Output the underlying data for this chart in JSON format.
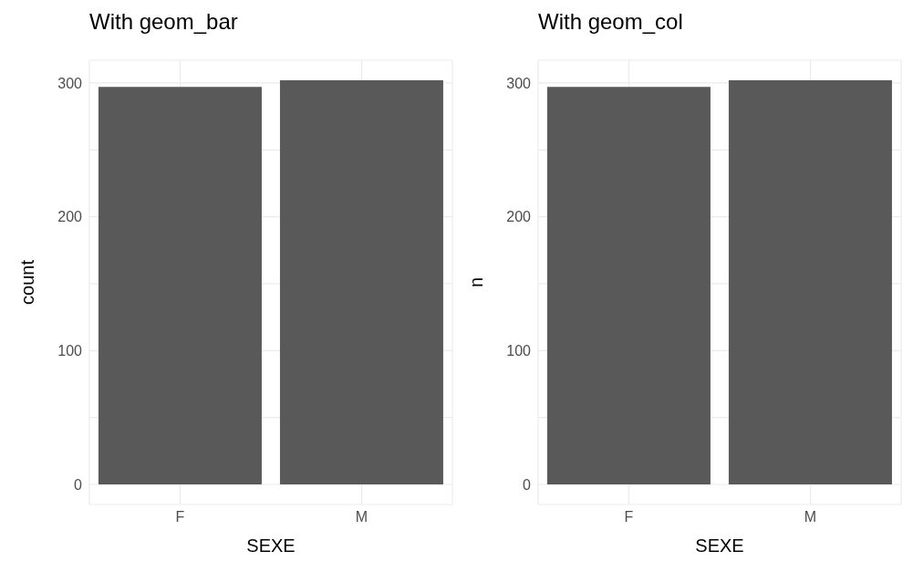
{
  "chart_data": [
    {
      "type": "bar",
      "title": "With geom_bar",
      "xlabel": "SEXE",
      "ylabel": "count",
      "categories": [
        "F",
        "M"
      ],
      "values": [
        297,
        302
      ],
      "color": "#595959",
      "ylim": [
        -15,
        317
      ],
      "yticks": [
        0,
        {
          "value": 50,
          "label": null
        },
        100,
        {
          "value": 150,
          "label": null
        },
        200,
        {
          "value": 250,
          "label": null
        },
        300
      ],
      "grid": true
    },
    {
      "type": "bar",
      "title": "With geom_col",
      "xlabel": "SEXE",
      "ylabel": "n",
      "categories": [
        "F",
        "M"
      ],
      "values": [
        297,
        302
      ],
      "color": "#595959",
      "ylim": [
        -15,
        317
      ],
      "yticks": [
        0,
        {
          "value": 50,
          "label": null
        },
        100,
        {
          "value": 150,
          "label": null
        },
        200,
        {
          "value": 250,
          "label": null
        },
        300
      ],
      "grid": true
    }
  ]
}
